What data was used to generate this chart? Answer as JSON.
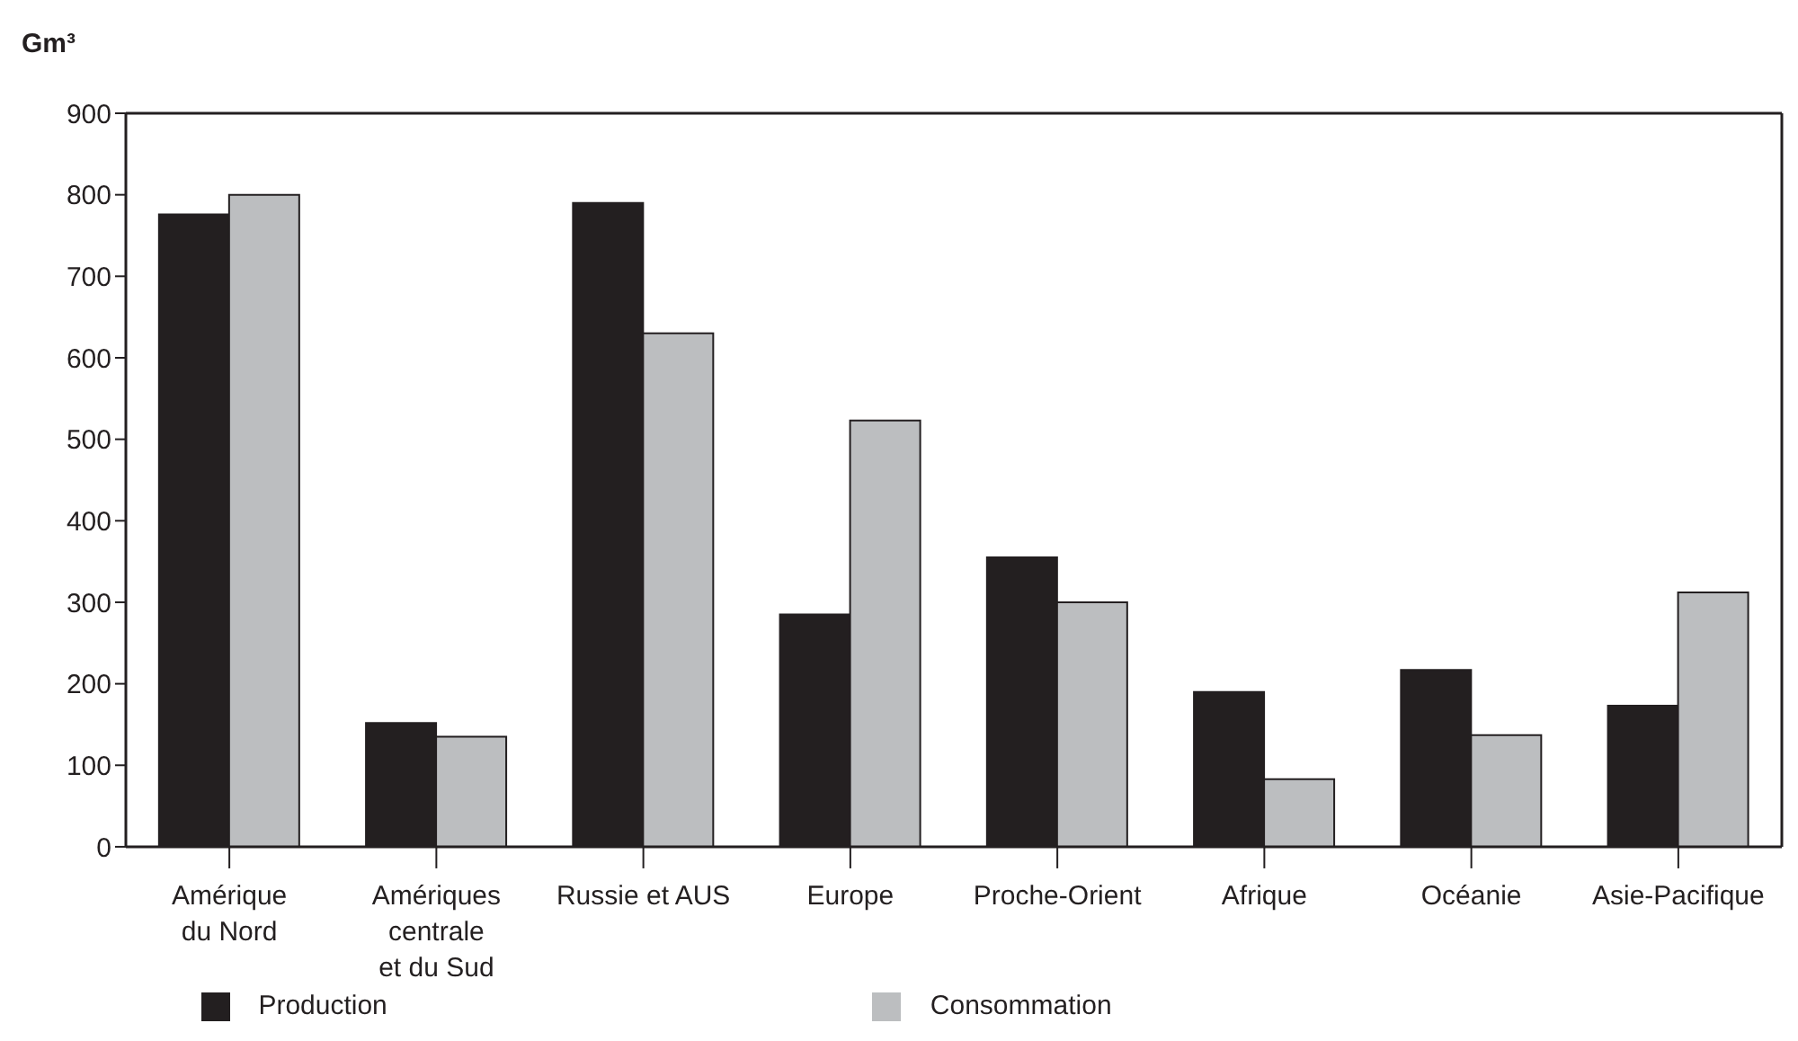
{
  "chart_data": {
    "type": "bar",
    "ylabel": "Gm³",
    "categories": [
      "Amérique\ndu Nord",
      "Amériques\ncentrale\net du Sud",
      "Russie et AUS",
      "Europe",
      "Proche-Orient",
      "Afrique",
      "Océanie",
      "Asie-Pacifique"
    ],
    "series": [
      {
        "name": "Production",
        "color": "#231f20",
        "values": [
          776,
          152,
          790,
          285,
          355,
          190,
          217,
          173
        ]
      },
      {
        "name": "Consommation",
        "color": "#bcbec0",
        "values": [
          800,
          135,
          630,
          523,
          300,
          83,
          137,
          312
        ]
      }
    ],
    "ylim": [
      0,
      900
    ],
    "yticks": [
      0,
      100,
      200,
      300,
      400,
      500,
      600,
      700,
      800,
      900
    ],
    "grid": false,
    "legend": "bottom"
  }
}
